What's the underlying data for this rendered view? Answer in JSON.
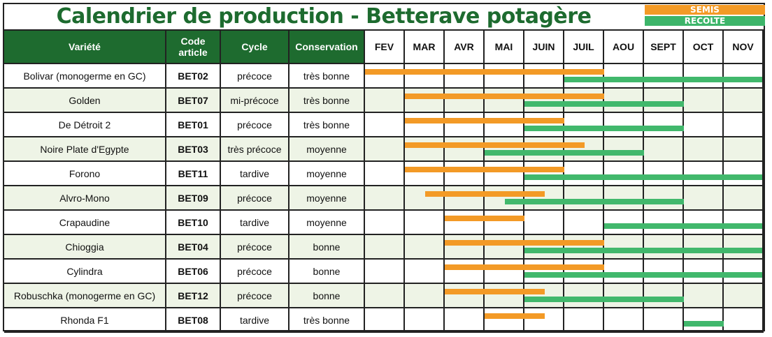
{
  "title": "Calendrier de production - Betterave potagère",
  "legend": {
    "semis": "SEMIS",
    "recolte": "RECOLTE"
  },
  "colors": {
    "title": "#1d6b2f",
    "header": "#1e6b2f",
    "semis": "#f39a26",
    "recolte": "#41b86c",
    "alt_row": "#eef4e6"
  },
  "columns": {
    "variete": "Variété",
    "code": "Code article",
    "cycle": "Cycle",
    "conservation": "Conservation"
  },
  "months": [
    "FEV",
    "MAR",
    "AVR",
    "MAI",
    "JUIN",
    "JUIL",
    "AOU",
    "SEPT",
    "OCT",
    "NOV"
  ],
  "rows": [
    {
      "variete": "Bolivar (monogerme en GC)",
      "code": "BET02",
      "cycle": "précoce",
      "conservation": "très bonne",
      "semis": [
        0,
        6
      ],
      "recolte": [
        5,
        10
      ]
    },
    {
      "variete": "Golden",
      "code": "BET07",
      "cycle": "mi-précoce",
      "conservation": "très bonne",
      "semis": [
        1,
        6
      ],
      "recolte": [
        4,
        8
      ]
    },
    {
      "variete": "De Détroit 2",
      "code": "BET01",
      "cycle": "précoce",
      "conservation": "très bonne",
      "semis": [
        1,
        5
      ],
      "recolte": [
        4,
        8
      ]
    },
    {
      "variete": "Noire Plate d'Egypte",
      "code": "BET03",
      "cycle": "très précoce",
      "conservation": "moyenne",
      "semis": [
        1,
        5.5
      ],
      "recolte": [
        3,
        7
      ]
    },
    {
      "variete": "Forono",
      "code": "BET11",
      "cycle": "tardive",
      "conservation": "moyenne",
      "semis": [
        1,
        5
      ],
      "recolte": [
        4,
        10
      ]
    },
    {
      "variete": "Alvro-Mono",
      "code": "BET09",
      "cycle": "précoce",
      "conservation": "moyenne",
      "semis": [
        1.5,
        4.5
      ],
      "recolte": [
        3.5,
        8
      ]
    },
    {
      "variete": "Crapaudine",
      "code": "BET10",
      "cycle": "tardive",
      "conservation": "moyenne",
      "semis": [
        2,
        4
      ],
      "recolte": [
        6,
        10
      ]
    },
    {
      "variete": "Chioggia",
      "code": "BET04",
      "cycle": "précoce",
      "conservation": "bonne",
      "semis": [
        2,
        6
      ],
      "recolte": [
        4,
        10
      ]
    },
    {
      "variete": "Cylindra",
      "code": "BET06",
      "cycle": "précoce",
      "conservation": "bonne",
      "semis": [
        2,
        6
      ],
      "recolte": [
        4,
        10
      ]
    },
    {
      "variete": "Robuschka (monogerme en GC)",
      "code": "BET12",
      "cycle": "précoce",
      "conservation": "bonne",
      "semis": [
        2,
        4.5
      ],
      "recolte": [
        4,
        8
      ]
    },
    {
      "variete": "Rhonda F1",
      "code": "BET08",
      "cycle": "tardive",
      "conservation": "très bonne",
      "semis": [
        3,
        4.5
      ],
      "recolte": [
        8,
        9
      ]
    }
  ]
}
